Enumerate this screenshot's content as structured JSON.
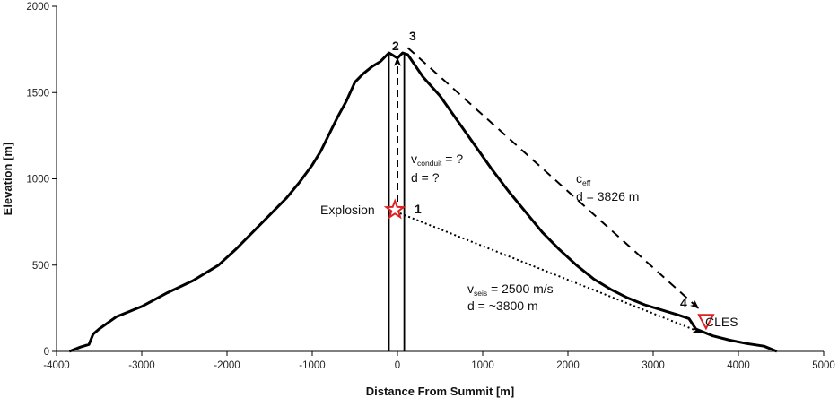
{
  "chart_data": {
    "type": "line",
    "xlabel": "Distance From Summit [m]",
    "ylabel": "Elevation [m]",
    "xlim": [
      -4000,
      5000
    ],
    "ylim": [
      0,
      2000
    ],
    "x_ticks": [
      -4000,
      -3000,
      -2000,
      -1000,
      0,
      1000,
      2000,
      3000,
      4000,
      5000
    ],
    "y_ticks": [
      0,
      500,
      1000,
      1500,
      2000
    ],
    "grid": false,
    "series": [
      {
        "x": [
          -3850,
          -3720,
          -3620,
          -3570,
          -3500,
          -3300,
          -3000,
          -2700,
          -2400,
          -2100,
          -1900,
          -1700,
          -1500,
          -1300,
          -1150,
          -1000,
          -900,
          -800,
          -700,
          -600,
          -500,
          -400,
          -300,
          -200,
          -100,
          0,
          60,
          120,
          300,
          500,
          700,
          900,
          1100,
          1300,
          1500,
          1700,
          1900,
          2100,
          2300,
          2500,
          2700,
          2900,
          3100,
          3300,
          3420,
          3500,
          3700,
          3900,
          4100,
          4300,
          4450
        ],
        "y": [
          0,
          25,
          40,
          100,
          130,
          200,
          260,
          340,
          410,
          500,
          590,
          690,
          790,
          890,
          980,
          1080,
          1160,
          1260,
          1360,
          1450,
          1560,
          1610,
          1650,
          1680,
          1730,
          1700,
          1730,
          1720,
          1590,
          1480,
          1340,
          1200,
          1060,
          930,
          810,
          690,
          590,
          500,
          420,
          360,
          310,
          270,
          240,
          210,
          190,
          130,
          90,
          65,
          45,
          30,
          0
        ]
      }
    ],
    "conduit_x": [
      -100,
      80
    ],
    "annotations": {
      "explosion_label": "Explosion",
      "point1": "1",
      "point2": "2",
      "point3": "3",
      "point4": "4",
      "v_conduit_v": "v",
      "v_conduit_sub": "conduit",
      "v_conduit_rest": " = ?",
      "d_conduit": "d = ?",
      "c_eff_c": "c",
      "c_eff_sub": "eff",
      "d_eff": "d = 3826 m",
      "v_seis_v": "v",
      "v_seis_sub": "seis",
      "v_seis_rest": " = 2500 m/s",
      "d_seis": "d = ~3800 m",
      "station": "CLES"
    },
    "markers": {
      "explosion": {
        "x": -30,
        "y": 820
      },
      "station": {
        "x": 3620,
        "y": 170
      }
    },
    "arrows": {
      "conduit": {
        "from": [
          0,
          800
        ],
        "to": [
          0,
          1700
        ]
      },
      "eff": {
        "from": [
          120,
          1760
        ],
        "to": [
          3530,
          250
        ]
      },
      "seis": {
        "from": [
          30,
          800
        ],
        "to": [
          3560,
          110
        ]
      }
    }
  },
  "colors": {
    "line": "#000000",
    "marker": "#e02020"
  }
}
